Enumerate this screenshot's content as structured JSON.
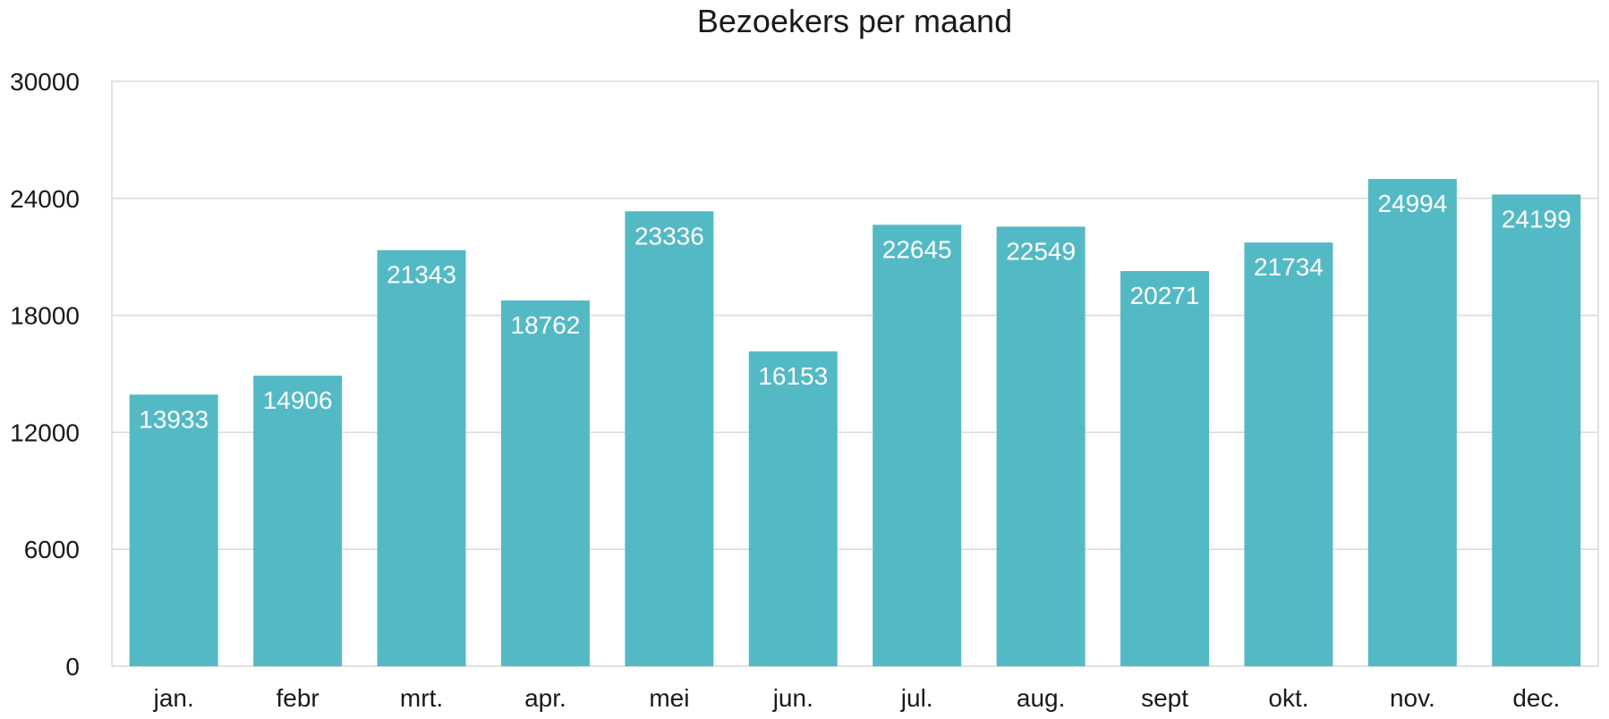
{
  "chart_data": {
    "type": "bar",
    "title": "Bezoekers per maand",
    "xlabel": "",
    "ylabel": "",
    "categories": [
      "jan.",
      "febr",
      "mrt.",
      "apr.",
      "mei",
      "jun.",
      "jul.",
      "aug.",
      "sept",
      "okt.",
      "nov.",
      "dec."
    ],
    "values": [
      13933,
      14906,
      21343,
      18762,
      23336,
      16153,
      22645,
      22549,
      20271,
      21734,
      24994,
      24199
    ],
    "ylim": [
      0,
      30000
    ],
    "yticks": [
      0,
      6000,
      12000,
      18000,
      24000,
      30000
    ],
    "grid": true,
    "legend": "none",
    "bar_color": "#53BAC5",
    "data_labels": "inside-top"
  }
}
